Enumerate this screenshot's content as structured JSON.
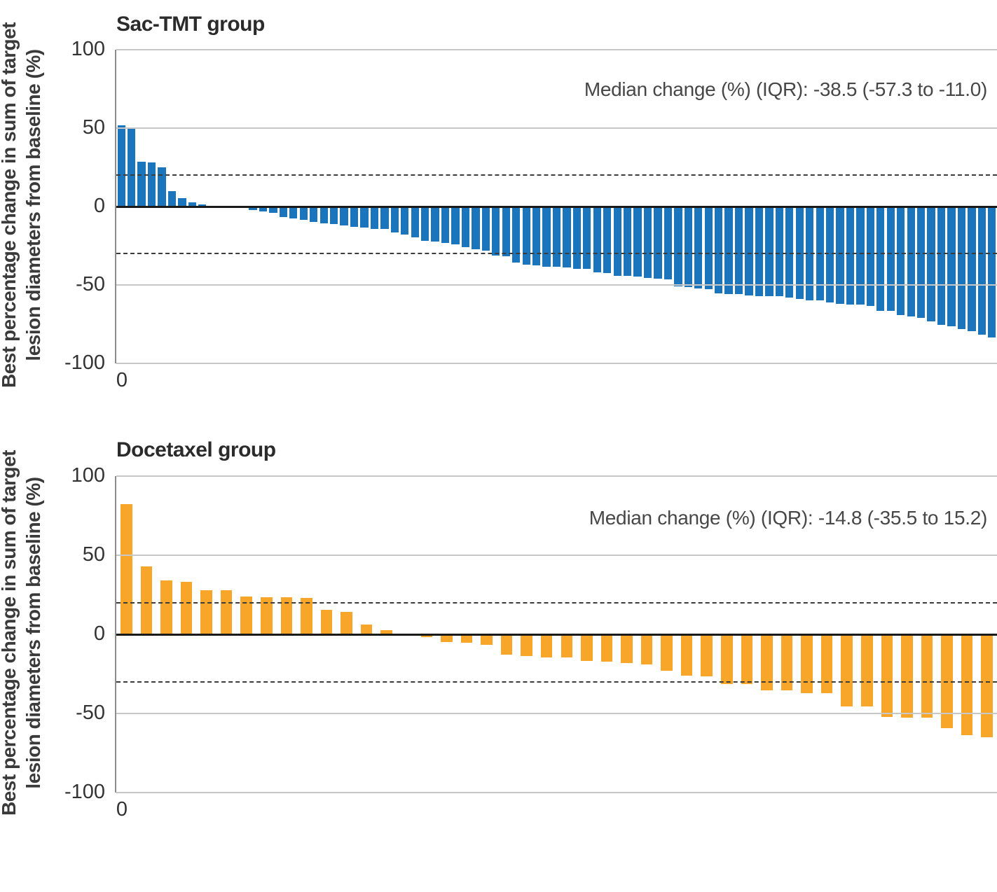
{
  "figure": {
    "y_axis_label_line1": "Best percentage change in sum of target",
    "y_axis_label_line2": "lesion diameters from baseline (%)",
    "x_tick_label": "0",
    "y_ticks": [
      100,
      50,
      0,
      -50,
      -100
    ],
    "reference_lines": [
      20,
      -30
    ],
    "grid_color": "#c7c7c7",
    "zero_line_color": "#1a1a1a",
    "reference_line_color": "#3c3c3c"
  },
  "chart_data": [
    {
      "type": "bar",
      "title": "Sac-TMT group",
      "annotation": "Median change (%) (IQR): -38.5 (-57.3 to -11.0)",
      "median_change_pct": -38.5,
      "iqr": [
        -57.3,
        -11.0
      ],
      "bar_color": "#1B75BC",
      "n_patients": 87,
      "ylabel": "Best percentage change in sum of target lesion diameters from baseline (%)",
      "xlabel": "0",
      "ylim": [
        -100,
        100
      ],
      "reference_lines": [
        20,
        -30
      ],
      "values": [
        52,
        49.5,
        28.5,
        28,
        25,
        10,
        5.5,
        2.5,
        1.5,
        0.5,
        0,
        -0.3,
        -1,
        -2.2,
        -3.2,
        -3.9,
        -6.6,
        -7.4,
        -8.4,
        -9.9,
        -10.8,
        -11,
        -12,
        -12.8,
        -13.6,
        -14.1,
        -14.4,
        -16.6,
        -18,
        -19.5,
        -21.8,
        -22.5,
        -23,
        -24,
        -26,
        -27.4,
        -28,
        -31.1,
        -31.9,
        -35.9,
        -36.9,
        -37.4,
        -38.2,
        -38.5,
        -38.9,
        -39.6,
        -39.6,
        -41.8,
        -42.6,
        -44.1,
        -44.1,
        -44.8,
        -45.5,
        -46,
        -46.3,
        -50.7,
        -51.5,
        -52.2,
        -52.7,
        -55.2,
        -55.9,
        -55.9,
        -56.5,
        -57,
        -57.1,
        -57.3,
        -58.2,
        -58.9,
        -59.7,
        -59.7,
        -61.1,
        -61.9,
        -62.6,
        -62.6,
        -63.4,
        -66.3,
        -66.6,
        -69.3,
        -70,
        -70.8,
        -73,
        -75.3,
        -76.2,
        -78.2,
        -79.3,
        -81.9,
        -83.4
      ]
    },
    {
      "type": "bar",
      "title": "Docetaxel group",
      "annotation": "Median change (%) (IQR): -14.8 (-35.5 to 15.2)",
      "median_change_pct": -14.8,
      "iqr": [
        -35.5,
        15.2
      ],
      "bar_color": "#F8A629",
      "n_patients": 44,
      "ylabel": "Best percentage change in sum of target lesion diameters from baseline (%)",
      "xlabel": "0",
      "ylim": [
        -100,
        100
      ],
      "reference_lines": [
        20,
        -30
      ],
      "values": [
        82.4,
        43,
        34.2,
        33,
        27.8,
        27.8,
        23.7,
        23.5,
        23.4,
        22.8,
        15.5,
        14.2,
        6,
        2.7,
        0.3,
        -1.8,
        -4.8,
        -5.5,
        -6.6,
        -13,
        -13.7,
        -14.8,
        -14.8,
        -16.7,
        -17.3,
        -18,
        -19.2,
        -23.2,
        -26.1,
        -26.5,
        -31.3,
        -31.3,
        -35.2,
        -35.6,
        -37.1,
        -37.1,
        -45.6,
        -45.6,
        -52.1,
        -52.5,
        -52.8,
        -59.4,
        -63.8,
        -65
      ]
    }
  ]
}
